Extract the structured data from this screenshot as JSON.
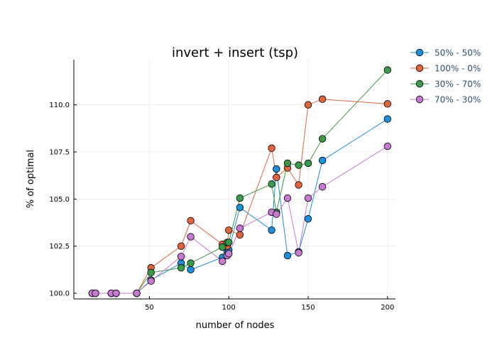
{
  "chart_data": {
    "type": "line",
    "title": "invert + insert (tsp)",
    "xlabel": "number of nodes",
    "ylabel": "% of optimal",
    "xlim": [
      2.4,
      205
    ],
    "ylim": [
      99.7,
      112.4
    ],
    "xticks": [
      50,
      100,
      150,
      200
    ],
    "yticks": [
      100.0,
      102.5,
      105.0,
      107.5,
      110.0
    ],
    "xtick_labels": [
      "50",
      "100",
      "150",
      "200"
    ],
    "ytick_labels": [
      "100.0",
      "102.5",
      "105.0",
      "107.5",
      "110.0"
    ],
    "grid": true,
    "legend_position": "top-right, outside plot",
    "x": [
      14,
      16,
      26,
      29,
      42,
      51,
      70,
      76,
      96,
      99,
      100,
      107,
      127,
      130,
      137,
      144,
      150,
      159,
      200
    ],
    "series": [
      {
        "name": "50% - 50%",
        "color": "#1b8fdc",
        "values": [
          100.0,
          100.0,
          100.0,
          100.0,
          100.0,
          100.7,
          101.6,
          101.25,
          101.9,
          102.2,
          102.3,
          104.55,
          103.35,
          106.6,
          102.0,
          102.2,
          103.95,
          107.05,
          109.25
        ]
      },
      {
        "name": "100% - 0%",
        "color": "#e0643c",
        "values": [
          100.0,
          100.0,
          100.0,
          100.0,
          100.0,
          101.35,
          102.5,
          103.85,
          102.6,
          102.5,
          103.35,
          103.1,
          107.7,
          106.15,
          106.65,
          105.75,
          110.0,
          110.3,
          110.05
        ]
      },
      {
        "name": "30% - 70%",
        "color": "#3b9a4a",
        "values": [
          100.0,
          100.0,
          100.0,
          100.0,
          100.0,
          101.1,
          101.35,
          101.6,
          102.45,
          102.7,
          102.7,
          105.05,
          105.8,
          104.3,
          106.9,
          106.8,
          106.9,
          108.2,
          111.85
        ]
      },
      {
        "name": "70% - 30%",
        "color": "#c77ad2",
        "values": [
          100.0,
          100.0,
          100.0,
          100.0,
          100.0,
          100.65,
          101.95,
          103.0,
          101.7,
          102.0,
          102.1,
          103.45,
          104.3,
          104.2,
          105.05,
          102.15,
          105.05,
          105.65,
          107.8
        ]
      }
    ]
  }
}
